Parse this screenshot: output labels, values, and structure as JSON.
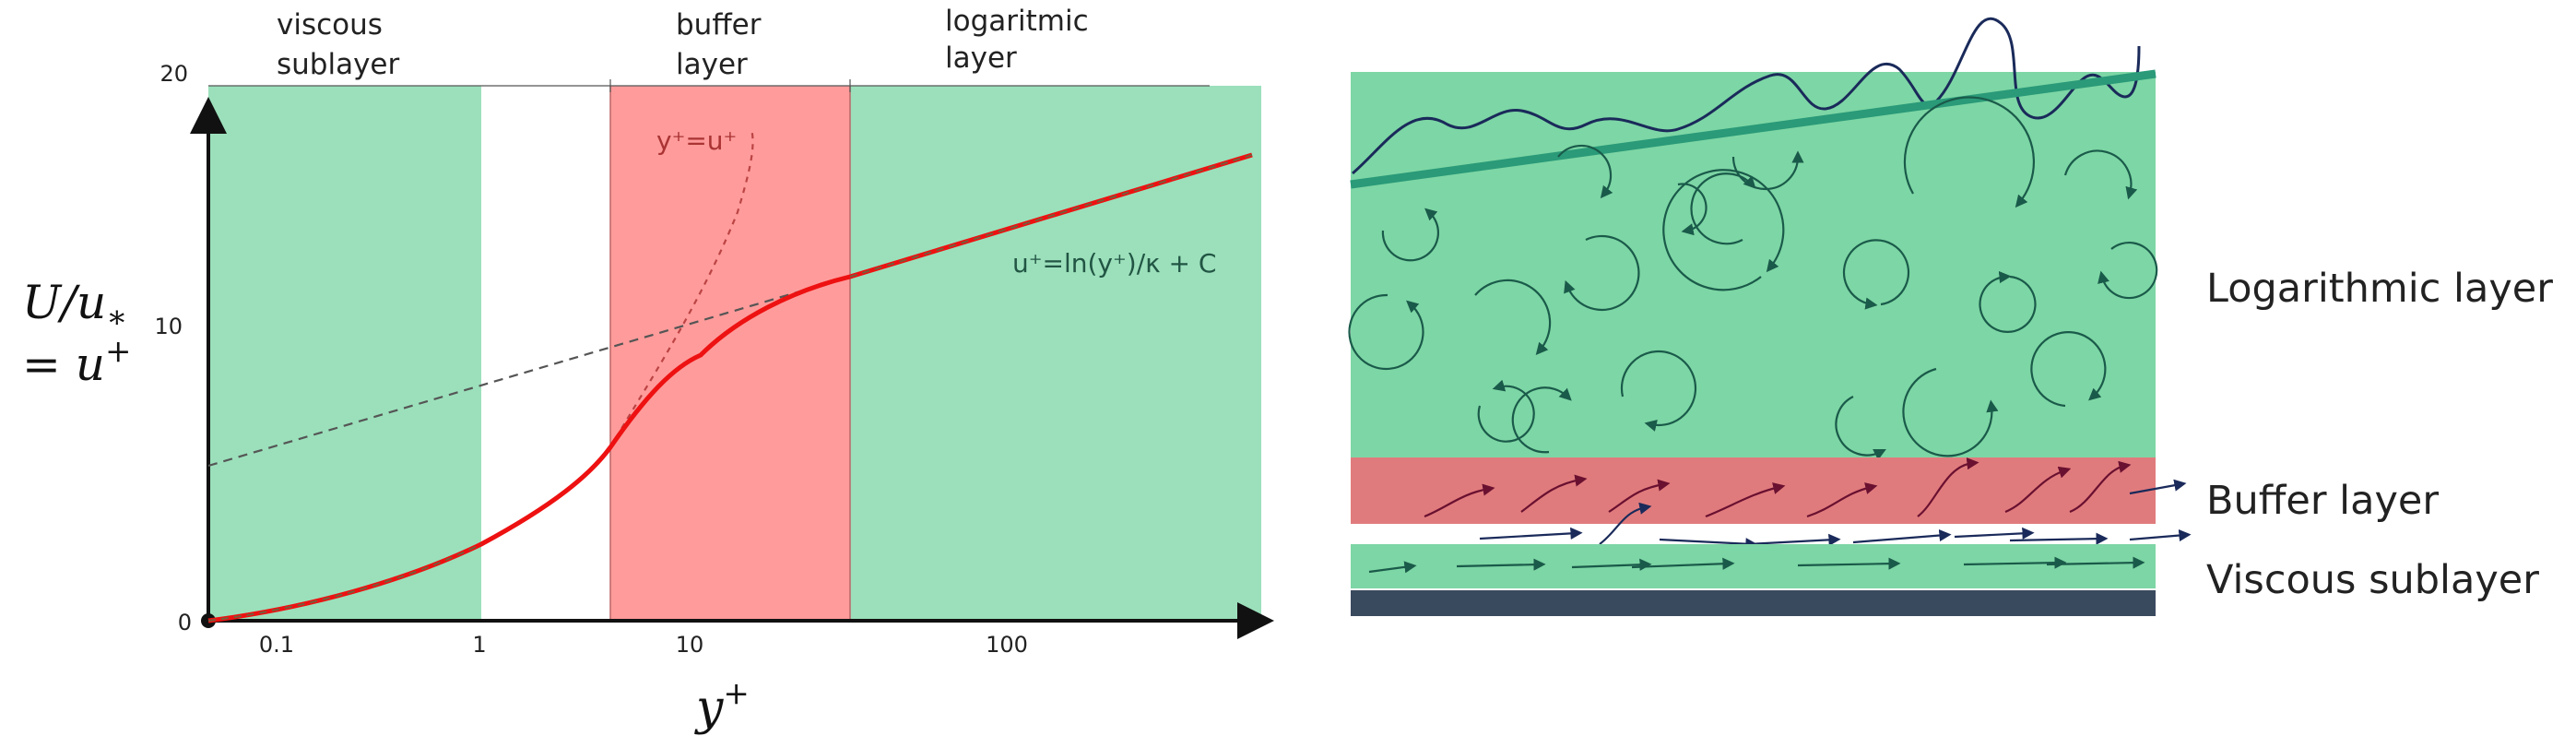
{
  "colors": {
    "viscous": "#9be0bb",
    "buffer": "#ff9b9b",
    "log": "#9be0bb",
    "curve": "#ee1111",
    "dashed": "#666666",
    "panel_green": "#7dd6a5",
    "panel_red": "#e07b7d",
    "wall": "#3a4a5e",
    "eddy": "#1a5a4a",
    "navy": "#1a2a5a",
    "maroon": "#6a1030"
  },
  "left_chart": {
    "regions": {
      "viscous_line1": "viscous",
      "viscous_line2": "sublayer",
      "buffer_line1": "buffer",
      "buffer_line2": "layer",
      "log_line1": "logaritmic",
      "log_line2": "layer"
    },
    "y_axis": {
      "label_line1": "U/u",
      "label_sub": "∗",
      "label_line2": "= u",
      "label_sup": "+",
      "ticks": [
        "20",
        "10",
        "0"
      ]
    },
    "x_axis": {
      "label": "y",
      "label_sup": "+",
      "ticks": [
        "0.1",
        "1",
        "10",
        "100"
      ]
    },
    "annotations": {
      "linear": "y⁺=u⁺",
      "log_law": "u⁺=ln(y⁺)/κ + C"
    }
  },
  "chart_data": {
    "type": "line",
    "xscale": "log",
    "xlabel": "y⁺",
    "ylabel": "U/u∗ = u⁺",
    "ylim": [
      0,
      20
    ],
    "series": [
      {
        "x": [
          0.05,
          0.1,
          0.3,
          1,
          2,
          5,
          8,
          12,
          20,
          30,
          60,
          100,
          300
        ],
        "values": [
          0.05,
          0.1,
          0.35,
          1.0,
          2.0,
          5.0,
          7.3,
          9.0,
          10.8,
          11.9,
          13.6,
          14.8,
          17.5
        ]
      },
      {
        "name": "y⁺=u⁺",
        "x": [
          5,
          8,
          10,
          12,
          15
        ],
        "values": [
          5,
          8,
          10,
          12,
          15
        ]
      },
      {
        "name": "u⁺=ln(y⁺)/κ + C",
        "x": [
          0.05,
          1,
          10,
          30,
          100,
          300
        ],
        "values": [
          5.3,
          7.7,
          9.8,
          11.9,
          14.8,
          17.5
        ]
      }
    ]
  },
  "right_diagram": {
    "labels": {
      "log": "Logarithmic layer",
      "buffer": "Buffer layer",
      "viscous": "Viscous sublayer"
    }
  }
}
